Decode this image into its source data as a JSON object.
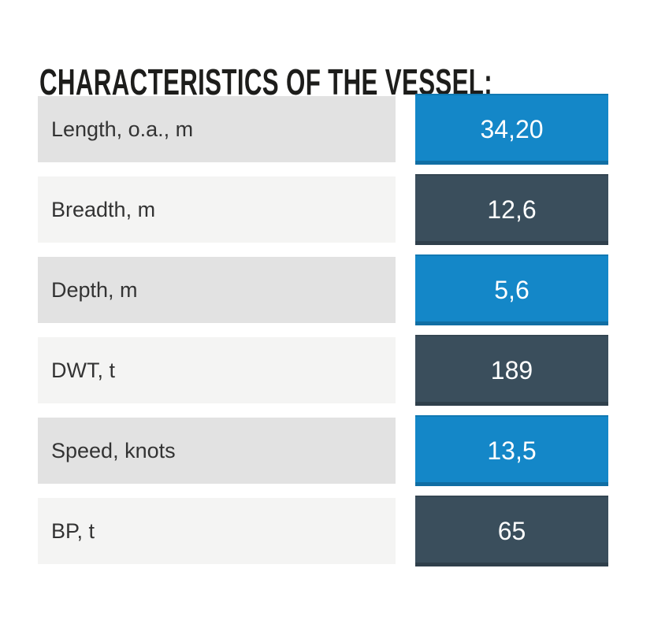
{
  "title": "CHARACTERISTICS OF THE VESSEL:",
  "table": {
    "rows": [
      {
        "label": "Length, o.a., m",
        "value": "34,20",
        "value_style": "blue"
      },
      {
        "label": "Breadth, m",
        "value": "12,6",
        "value_style": "dark"
      },
      {
        "label": "Depth, m",
        "value": "5,6",
        "value_style": "blue"
      },
      {
        "label": "DWT, t",
        "value": "189",
        "value_style": "dark"
      },
      {
        "label": "Speed, knots",
        "value": "13,5",
        "value_style": "blue"
      },
      {
        "label": "BP, t",
        "value": "65",
        "value_style": "dark"
      }
    ]
  },
  "colors": {
    "accent_blue": "#1487c8",
    "dark_slate": "#3a4e5c",
    "label_bg_odd": "#e2e2e2",
    "label_bg_even": "#f4f4f3",
    "title_text": "#1d1d1b",
    "label_text": "#333333",
    "value_text": "#ffffff",
    "page_bg": "#ffffff"
  }
}
